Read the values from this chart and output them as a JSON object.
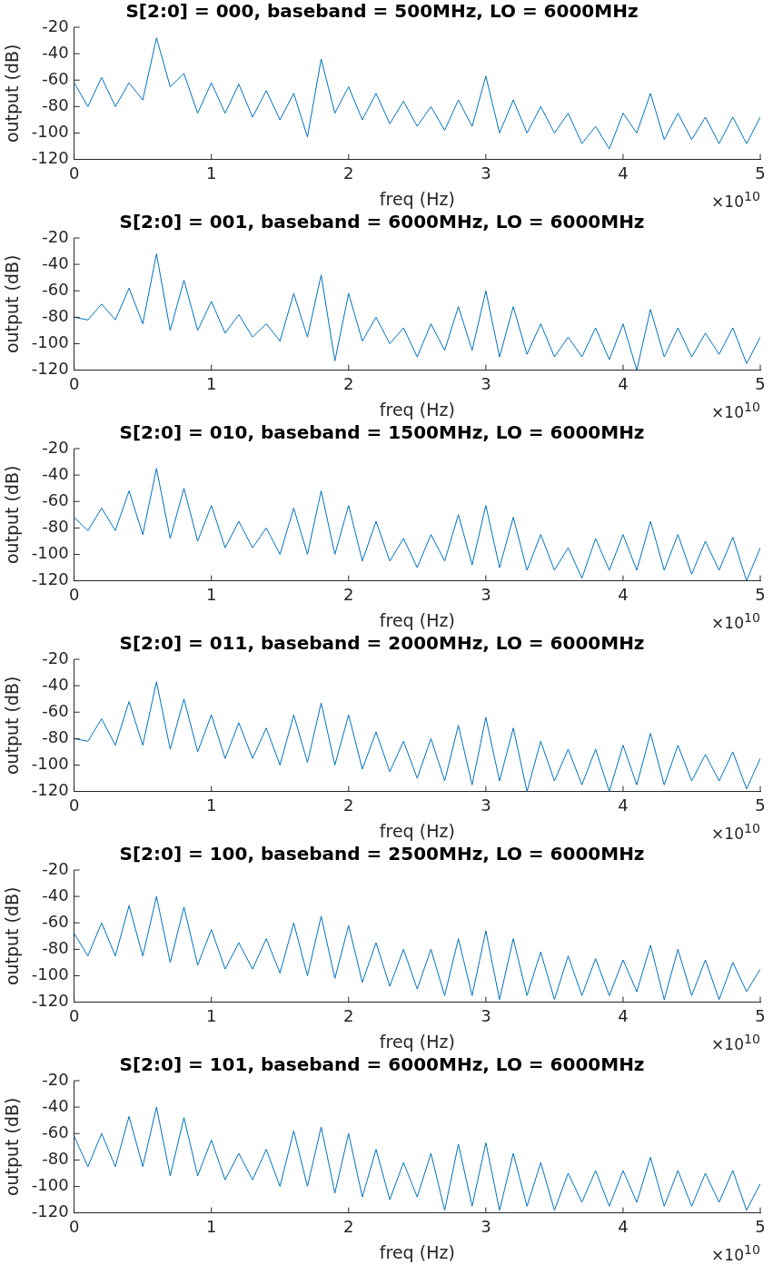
{
  "chart_data": [
    {
      "type": "line",
      "title": "S[2:0] = 000, baseband = 500MHz, LO = 6000MHz",
      "xlabel": "freq (Hz)",
      "ylabel": "output (dB)",
      "annotations": [
        "×10$^{10}$"
      ],
      "xlim": [
        0,
        5
      ],
      "xticks": [
        0,
        1,
        2,
        3,
        4,
        5
      ],
      "ylim": [
        -120,
        -20
      ],
      "yticks": [
        -120,
        -100,
        -80,
        -60,
        -40,
        -20
      ],
      "grid": false,
      "x": [
        0,
        0.1,
        0.2,
        0.3,
        0.4,
        0.5,
        0.6,
        0.7,
        0.8,
        0.9,
        1,
        1.1,
        1.2,
        1.3,
        1.4,
        1.5,
        1.6,
        1.7,
        1.8,
        1.9,
        2,
        2.1,
        2.2,
        2.3,
        2.4,
        2.5,
        2.6,
        2.7,
        2.8,
        2.9,
        3,
        3.1,
        3.2,
        3.3,
        3.4,
        3.5,
        3.6,
        3.7,
        3.8,
        3.9,
        4,
        4.1,
        4.2,
        4.3,
        4.4,
        4.5,
        4.6,
        4.7,
        4.8,
        4.9,
        5
      ],
      "series": [
        {
          "color": "#0072bd",
          "values": [
            -62,
            -80,
            -58,
            -80,
            -62,
            -75,
            -28,
            -65,
            -55,
            -85,
            -62,
            -85,
            -63,
            -88,
            -68,
            -90,
            -70,
            -103,
            -44,
            -85,
            -65,
            -90,
            -70,
            -93,
            -76,
            -95,
            -80,
            -98,
            -75,
            -95,
            -57,
            -100,
            -75,
            -100,
            -80,
            -100,
            -85,
            -108,
            -95,
            -112,
            -85,
            -100,
            -70,
            -105,
            -85,
            -105,
            -88,
            -108,
            -88,
            -108,
            -88
          ]
        }
      ]
    },
    {
      "type": "line",
      "title": "S[2:0] = 001, baseband = 6000MHz, LO = 6000MHz",
      "xlabel": "freq (Hz)",
      "ylabel": "output (dB)",
      "annotations": [
        "×10$^{10}$"
      ],
      "xlim": [
        0,
        5
      ],
      "xticks": [
        0,
        1,
        2,
        3,
        4,
        5
      ],
      "ylim": [
        -120,
        -20
      ],
      "yticks": [
        -120,
        -100,
        -80,
        -60,
        -40,
        -20
      ],
      "grid": false,
      "x": [
        0,
        0.1,
        0.2,
        0.3,
        0.4,
        0.5,
        0.6,
        0.7,
        0.8,
        0.9,
        1,
        1.1,
        1.2,
        1.3,
        1.4,
        1.5,
        1.6,
        1.7,
        1.8,
        1.9,
        2,
        2.1,
        2.2,
        2.3,
        2.4,
        2.5,
        2.6,
        2.7,
        2.8,
        2.9,
        3,
        3.1,
        3.2,
        3.3,
        3.4,
        3.5,
        3.6,
        3.7,
        3.8,
        3.9,
        4,
        4.1,
        4.2,
        4.3,
        4.4,
        4.5,
        4.6,
        4.7,
        4.8,
        4.9,
        5
      ],
      "series": [
        {
          "color": "#0072bd",
          "values": [
            -80,
            -82,
            -70,
            -82,
            -58,
            -85,
            -32,
            -90,
            -52,
            -90,
            -68,
            -92,
            -78,
            -95,
            -85,
            -98,
            -62,
            -95,
            -48,
            -113,
            -62,
            -98,
            -80,
            -100,
            -88,
            -110,
            -85,
            -105,
            -72,
            -105,
            -60,
            -110,
            -72,
            -108,
            -85,
            -110,
            -95,
            -110,
            -88,
            -112,
            -85,
            -120,
            -74,
            -110,
            -88,
            -110,
            -92,
            -108,
            -88,
            -115,
            -95
          ]
        }
      ]
    },
    {
      "type": "line",
      "title": "S[2:0] = 010, baseband = 1500MHz, LO = 6000MHz",
      "xlabel": "freq (Hz)",
      "ylabel": "output (dB)",
      "annotations": [
        "×10$^{10}$"
      ],
      "xlim": [
        0,
        5
      ],
      "xticks": [
        0,
        1,
        2,
        3,
        4,
        5
      ],
      "ylim": [
        -120,
        -20
      ],
      "yticks": [
        -120,
        -100,
        -80,
        -60,
        -40,
        -20
      ],
      "grid": false,
      "x": [
        0,
        0.1,
        0.2,
        0.3,
        0.4,
        0.5,
        0.6,
        0.7,
        0.8,
        0.9,
        1,
        1.1,
        1.2,
        1.3,
        1.4,
        1.5,
        1.6,
        1.7,
        1.8,
        1.9,
        2,
        2.1,
        2.2,
        2.3,
        2.4,
        2.5,
        2.6,
        2.7,
        2.8,
        2.9,
        3,
        3.1,
        3.2,
        3.3,
        3.4,
        3.5,
        3.6,
        3.7,
        3.8,
        3.9,
        4,
        4.1,
        4.2,
        4.3,
        4.4,
        4.5,
        4.6,
        4.7,
        4.8,
        4.9,
        5
      ],
      "series": [
        {
          "color": "#0072bd",
          "values": [
            -72,
            -82,
            -65,
            -82,
            -52,
            -85,
            -35,
            -88,
            -50,
            -90,
            -63,
            -95,
            -75,
            -95,
            -80,
            -100,
            -65,
            -100,
            -52,
            -100,
            -63,
            -105,
            -75,
            -105,
            -88,
            -110,
            -85,
            -105,
            -70,
            -108,
            -63,
            -110,
            -72,
            -112,
            -85,
            -112,
            -95,
            -118,
            -88,
            -112,
            -85,
            -112,
            -75,
            -112,
            -85,
            -115,
            -90,
            -112,
            -87,
            -120,
            -95
          ]
        }
      ]
    },
    {
      "type": "line",
      "title": "S[2:0] = 011, baseband = 2000MHz, LO = 6000MHz",
      "xlabel": "freq (Hz)",
      "ylabel": "output (dB)",
      "annotations": [
        "×10$^{10}$"
      ],
      "xlim": [
        0,
        5
      ],
      "xticks": [
        0,
        1,
        2,
        3,
        4,
        5
      ],
      "ylim": [
        -120,
        -20
      ],
      "yticks": [
        -120,
        -100,
        -80,
        -60,
        -40,
        -20
      ],
      "grid": false,
      "x": [
        0,
        0.1,
        0.2,
        0.3,
        0.4,
        0.5,
        0.6,
        0.7,
        0.8,
        0.9,
        1,
        1.1,
        1.2,
        1.3,
        1.4,
        1.5,
        1.6,
        1.7,
        1.8,
        1.9,
        2,
        2.1,
        2.2,
        2.3,
        2.4,
        2.5,
        2.6,
        2.7,
        2.8,
        2.9,
        3,
        3.1,
        3.2,
        3.3,
        3.4,
        3.5,
        3.6,
        3.7,
        3.8,
        3.9,
        4,
        4.1,
        4.2,
        4.3,
        4.4,
        4.5,
        4.6,
        4.7,
        4.8,
        4.9,
        5
      ],
      "series": [
        {
          "color": "#0072bd",
          "values": [
            -80,
            -82,
            -65,
            -85,
            -52,
            -85,
            -37,
            -88,
            -50,
            -90,
            -62,
            -95,
            -68,
            -95,
            -72,
            -100,
            -62,
            -98,
            -53,
            -100,
            -62,
            -103,
            -75,
            -105,
            -82,
            -110,
            -80,
            -112,
            -70,
            -115,
            -64,
            -112,
            -72,
            -120,
            -82,
            -112,
            -88,
            -115,
            -88,
            -120,
            -85,
            -115,
            -76,
            -115,
            -85,
            -112,
            -92,
            -112,
            -90,
            -118,
            -95
          ]
        }
      ]
    },
    {
      "type": "line",
      "title": "S[2:0] = 100, baseband = 2500MHz, LO = 6000MHz",
      "xlabel": "freq (Hz)",
      "ylabel": "output (dB)",
      "annotations": [
        "×10$^{10}$"
      ],
      "xlim": [
        0,
        5
      ],
      "xticks": [
        0,
        1,
        2,
        3,
        4,
        5
      ],
      "ylim": [
        -120,
        -20
      ],
      "yticks": [
        -120,
        -100,
        -80,
        -60,
        -40,
        -20
      ],
      "grid": false,
      "x": [
        0,
        0.1,
        0.2,
        0.3,
        0.4,
        0.5,
        0.6,
        0.7,
        0.8,
        0.9,
        1,
        1.1,
        1.2,
        1.3,
        1.4,
        1.5,
        1.6,
        1.7,
        1.8,
        1.9,
        2,
        2.1,
        2.2,
        2.3,
        2.4,
        2.5,
        2.6,
        2.7,
        2.8,
        2.9,
        3,
        3.1,
        3.2,
        3.3,
        3.4,
        3.5,
        3.6,
        3.7,
        3.8,
        3.9,
        4,
        4.1,
        4.2,
        4.3,
        4.4,
        4.5,
        4.6,
        4.7,
        4.8,
        4.9,
        5
      ],
      "series": [
        {
          "color": "#0072bd",
          "values": [
            -68,
            -85,
            -60,
            -85,
            -47,
            -85,
            -40,
            -90,
            -48,
            -92,
            -65,
            -95,
            -75,
            -95,
            -72,
            -98,
            -60,
            -100,
            -55,
            -102,
            -62,
            -105,
            -75,
            -108,
            -80,
            -110,
            -80,
            -115,
            -72,
            -115,
            -66,
            -118,
            -72,
            -115,
            -82,
            -118,
            -85,
            -115,
            -87,
            -115,
            -88,
            -112,
            -77,
            -118,
            -80,
            -115,
            -88,
            -118,
            -90,
            -112,
            -95
          ]
        }
      ]
    },
    {
      "type": "line",
      "title": "S[2:0] = 101, baseband = 6000MHz, LO = 6000MHz",
      "xlabel": "freq (Hz)",
      "ylabel": "output (dB)",
      "annotations": [
        "×10$^{10}$"
      ],
      "xlim": [
        0,
        5
      ],
      "xticks": [
        0,
        1,
        2,
        3,
        4,
        5
      ],
      "ylim": [
        -120,
        -20
      ],
      "yticks": [
        -120,
        -100,
        -80,
        -60,
        -40,
        -20
      ],
      "grid": false,
      "x": [
        0,
        0.1,
        0.2,
        0.3,
        0.4,
        0.5,
        0.6,
        0.7,
        0.8,
        0.9,
        1,
        1.1,
        1.2,
        1.3,
        1.4,
        1.5,
        1.6,
        1.7,
        1.8,
        1.9,
        2,
        2.1,
        2.2,
        2.3,
        2.4,
        2.5,
        2.6,
        2.7,
        2.8,
        2.9,
        3,
        3.1,
        3.2,
        3.3,
        3.4,
        3.5,
        3.6,
        3.7,
        3.8,
        3.9,
        4,
        4.1,
        4.2,
        4.3,
        4.4,
        4.5,
        4.6,
        4.7,
        4.8,
        4.9,
        5
      ],
      "series": [
        {
          "color": "#0072bd",
          "values": [
            -62,
            -85,
            -60,
            -85,
            -47,
            -85,
            -40,
            -92,
            -48,
            -92,
            -65,
            -95,
            -75,
            -95,
            -72,
            -100,
            -58,
            -100,
            -55,
            -105,
            -60,
            -108,
            -72,
            -110,
            -82,
            -108,
            -75,
            -118,
            -68,
            -115,
            -67,
            -118,
            -75,
            -115,
            -82,
            -118,
            -90,
            -112,
            -88,
            -115,
            -88,
            -112,
            -78,
            -115,
            -88,
            -115,
            -90,
            -112,
            -88,
            -118,
            -98
          ]
        }
      ]
    }
  ]
}
